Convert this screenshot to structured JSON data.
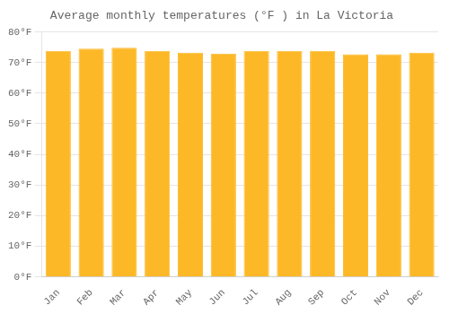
{
  "chart_data": {
    "type": "bar",
    "title": "Average monthly temperatures (°F ) in La Victoria",
    "categories": [
      "Jan",
      "Feb",
      "Mar",
      "Apr",
      "May",
      "Jun",
      "Jul",
      "Aug",
      "Sep",
      "Oct",
      "Nov",
      "Dec"
    ],
    "values": [
      73.8,
      74.5,
      74.8,
      73.8,
      73.2,
      72.9,
      73.8,
      73.8,
      73.8,
      72.7,
      72.7,
      73.2
    ],
    "color": "#FDB827",
    "ylim": [
      0,
      80
    ],
    "yticks": [
      {
        "value": 0,
        "label": "0°F"
      },
      {
        "value": 10,
        "label": "10°F"
      },
      {
        "value": 20,
        "label": "20°F"
      },
      {
        "value": 30,
        "label": "30°F"
      },
      {
        "value": 40,
        "label": "40°F"
      },
      {
        "value": 50,
        "label": "50°F"
      },
      {
        "value": 60,
        "label": "60°F"
      },
      {
        "value": 70,
        "label": "70°F"
      },
      {
        "value": 80,
        "label": "80°F"
      }
    ],
    "grid": true
  }
}
